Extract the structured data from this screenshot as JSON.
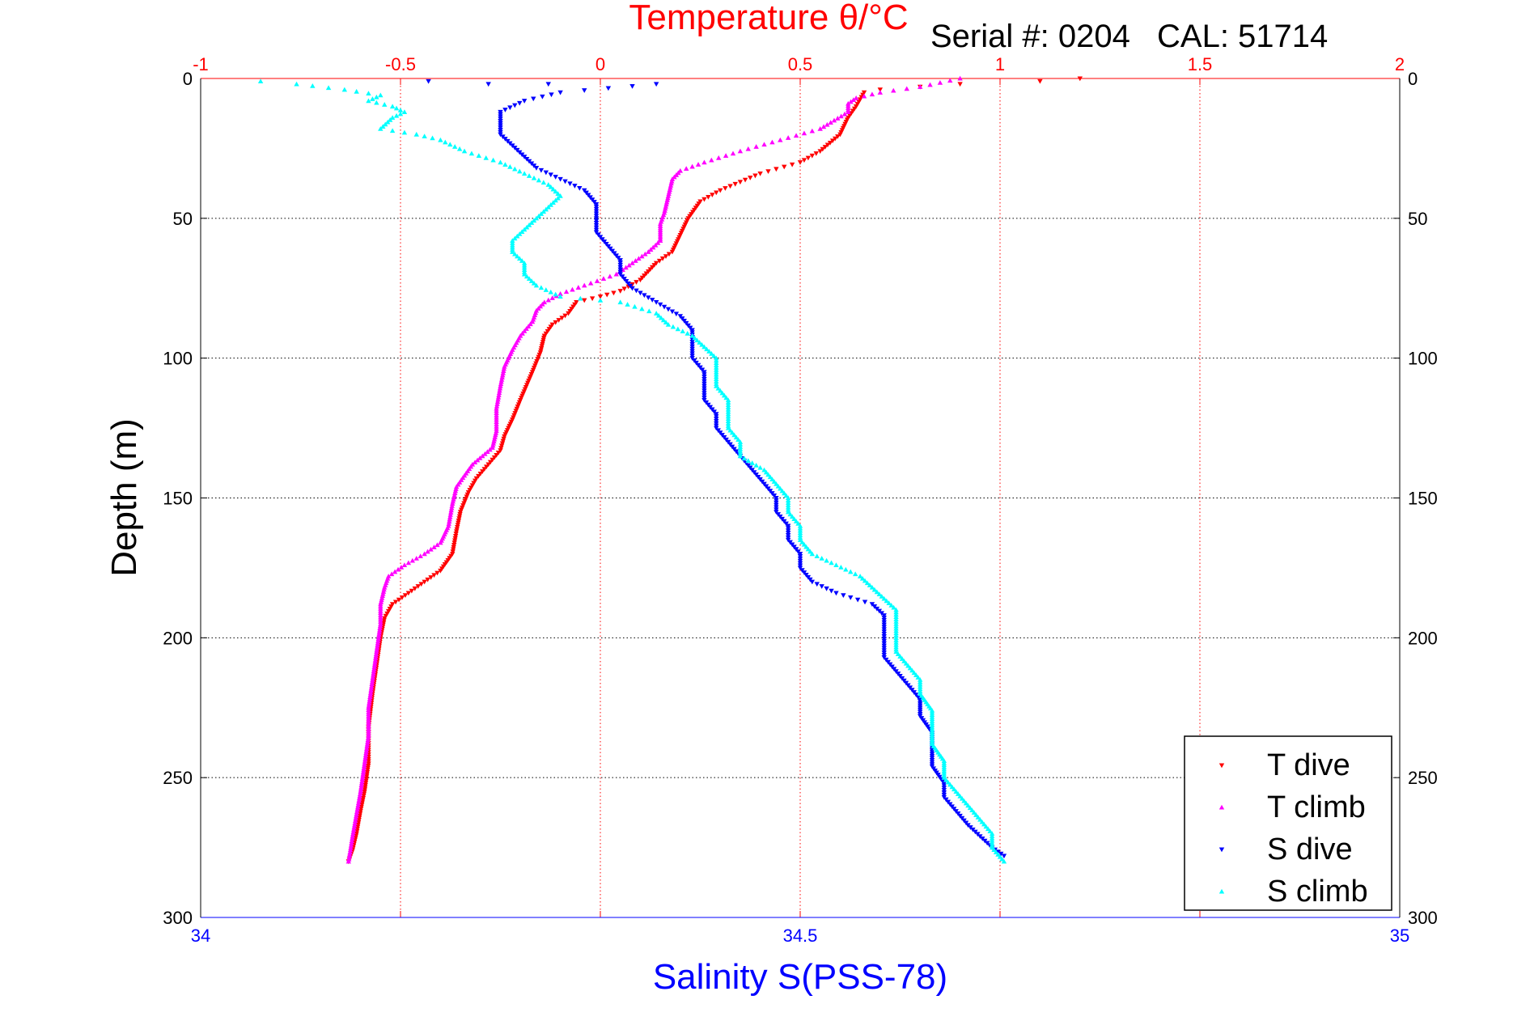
{
  "chart_data": {
    "type": "scatter",
    "header": {
      "serial_label": "Serial #: 0204",
      "cal_label": "CAL: 51714"
    },
    "temperature_axis": {
      "label": "Temperature θ/°C",
      "range": [
        -1,
        2
      ],
      "ticks": [
        "-1",
        "-0.5",
        "0",
        "0.5",
        "1",
        "1.5",
        "2"
      ],
      "color": "#ff0000"
    },
    "salinity_axis": {
      "label": "Salinity S(PSS-78)",
      "range": [
        34,
        35
      ],
      "ticks": [
        "34",
        "34.5",
        "35"
      ],
      "color": "#0000ff"
    },
    "depth_axis": {
      "label": "Depth (m)",
      "range": [
        0,
        300
      ],
      "ticks": [
        "0",
        "50",
        "100",
        "150",
        "200",
        "250",
        "300"
      ],
      "reversed": true
    },
    "grid": true,
    "legend_position": "bottom-right",
    "series": [
      {
        "name": "T dive",
        "axis": "temperature",
        "color": "#ff0000",
        "marker": "triangle-down",
        "points": [
          [
            1.2,
            0
          ],
          [
            1.1,
            1
          ],
          [
            0.9,
            2
          ],
          [
            0.8,
            3
          ],
          [
            0.7,
            4
          ],
          [
            0.66,
            5
          ],
          [
            0.64,
            10
          ],
          [
            0.62,
            14
          ],
          [
            0.6,
            20
          ],
          [
            0.55,
            26
          ],
          [
            0.5,
            30
          ],
          [
            0.4,
            34
          ],
          [
            0.3,
            40
          ],
          [
            0.25,
            44
          ],
          [
            0.22,
            50
          ],
          [
            0.2,
            56
          ],
          [
            0.18,
            62
          ],
          [
            0.14,
            66
          ],
          [
            0.1,
            72
          ],
          [
            0.05,
            76
          ],
          [
            0.0,
            78
          ],
          [
            -0.06,
            80
          ],
          [
            -0.08,
            84
          ],
          [
            -0.12,
            88
          ],
          [
            -0.14,
            92
          ],
          [
            -0.15,
            98
          ],
          [
            -0.17,
            105
          ],
          [
            -0.2,
            115
          ],
          [
            -0.22,
            122
          ],
          [
            -0.24,
            128
          ],
          [
            -0.25,
            133
          ],
          [
            -0.28,
            138
          ],
          [
            -0.31,
            143
          ],
          [
            -0.33,
            148
          ],
          [
            -0.35,
            155
          ],
          [
            -0.36,
            162
          ],
          [
            -0.37,
            170
          ],
          [
            -0.4,
            176
          ],
          [
            -0.44,
            180
          ],
          [
            -0.48,
            184
          ],
          [
            -0.52,
            188
          ],
          [
            -0.54,
            193
          ],
          [
            -0.55,
            200
          ],
          [
            -0.56,
            210
          ],
          [
            -0.57,
            220
          ],
          [
            -0.58,
            232
          ],
          [
            -0.58,
            245
          ],
          [
            -0.59,
            255
          ],
          [
            -0.6,
            262
          ],
          [
            -0.61,
            270
          ],
          [
            -0.62,
            276
          ],
          [
            -0.63,
            280
          ]
        ]
      },
      {
        "name": "T climb",
        "axis": "temperature",
        "color": "#ff00ff",
        "marker": "triangle-up",
        "points": [
          [
            0.9,
            0
          ],
          [
            0.8,
            3
          ],
          [
            0.7,
            5
          ],
          [
            0.64,
            7
          ],
          [
            0.62,
            9
          ],
          [
            0.62,
            12
          ],
          [
            0.55,
            18
          ],
          [
            0.45,
            22
          ],
          [
            0.35,
            26
          ],
          [
            0.26,
            30
          ],
          [
            0.2,
            33
          ],
          [
            0.18,
            36
          ],
          [
            0.17,
            42
          ],
          [
            0.16,
            48
          ],
          [
            0.15,
            52
          ],
          [
            0.15,
            58
          ],
          [
            0.12,
            62
          ],
          [
            0.08,
            66
          ],
          [
            0.04,
            70
          ],
          [
            -0.04,
            74
          ],
          [
            -0.1,
            77
          ],
          [
            -0.14,
            80
          ],
          [
            -0.16,
            83
          ],
          [
            -0.17,
            87
          ],
          [
            -0.2,
            92
          ],
          [
            -0.22,
            97
          ],
          [
            -0.24,
            103
          ],
          [
            -0.25,
            110
          ],
          [
            -0.26,
            118
          ],
          [
            -0.26,
            126
          ],
          [
            -0.27,
            132
          ],
          [
            -0.32,
            138
          ],
          [
            -0.34,
            142
          ],
          [
            -0.36,
            146
          ],
          [
            -0.37,
            152
          ],
          [
            -0.38,
            160
          ],
          [
            -0.4,
            166
          ],
          [
            -0.44,
            170
          ],
          [
            -0.49,
            174
          ],
          [
            -0.53,
            178
          ],
          [
            -0.54,
            182
          ],
          [
            -0.55,
            188
          ],
          [
            -0.55,
            195
          ],
          [
            -0.56,
            205
          ],
          [
            -0.57,
            215
          ],
          [
            -0.58,
            225
          ],
          [
            -0.58,
            235
          ],
          [
            -0.59,
            245
          ],
          [
            -0.6,
            255
          ],
          [
            -0.61,
            263
          ],
          [
            -0.62,
            271
          ],
          [
            -0.63,
            280
          ]
        ]
      },
      {
        "name": "S dive",
        "axis": "salinity",
        "color": "#0000ff",
        "marker": "triangle-down",
        "points": [
          [
            34.19,
            1
          ],
          [
            34.24,
            2
          ],
          [
            34.29,
            2
          ],
          [
            34.38,
            2
          ],
          [
            34.3,
            5
          ],
          [
            34.27,
            8
          ],
          [
            34.25,
            12
          ],
          [
            34.25,
            16
          ],
          [
            34.25,
            20
          ],
          [
            34.26,
            24
          ],
          [
            34.27,
            28
          ],
          [
            34.28,
            32
          ],
          [
            34.3,
            36
          ],
          [
            34.32,
            40
          ],
          [
            34.33,
            45
          ],
          [
            34.33,
            50
          ],
          [
            34.33,
            55
          ],
          [
            34.34,
            60
          ],
          [
            34.35,
            65
          ],
          [
            34.35,
            70
          ],
          [
            34.36,
            75
          ],
          [
            34.38,
            80
          ],
          [
            34.4,
            85
          ],
          [
            34.41,
            90
          ],
          [
            34.41,
            95
          ],
          [
            34.41,
            100
          ],
          [
            34.42,
            105
          ],
          [
            34.42,
            110
          ],
          [
            34.42,
            115
          ],
          [
            34.43,
            120
          ],
          [
            34.43,
            125
          ],
          [
            34.44,
            130
          ],
          [
            34.45,
            135
          ],
          [
            34.46,
            140
          ],
          [
            34.47,
            145
          ],
          [
            34.48,
            150
          ],
          [
            34.48,
            155
          ],
          [
            34.49,
            160
          ],
          [
            34.49,
            165
          ],
          [
            34.5,
            170
          ],
          [
            34.5,
            175
          ],
          [
            34.51,
            180
          ],
          [
            34.53,
            184
          ],
          [
            34.56,
            188
          ],
          [
            34.57,
            192
          ],
          [
            34.57,
            197
          ],
          [
            34.57,
            202
          ],
          [
            34.57,
            207
          ],
          [
            34.58,
            212
          ],
          [
            34.59,
            217
          ],
          [
            34.6,
            222
          ],
          [
            34.6,
            228
          ],
          [
            34.61,
            234
          ],
          [
            34.61,
            240
          ],
          [
            34.61,
            246
          ],
          [
            34.62,
            252
          ],
          [
            34.62,
            257
          ],
          [
            34.63,
            262
          ],
          [
            34.64,
            267
          ],
          [
            34.65,
            271
          ],
          [
            34.66,
            275
          ],
          [
            34.67,
            278
          ]
        ]
      },
      {
        "name": "S climb",
        "axis": "salinity",
        "color": "#00ffff",
        "marker": "triangle-up",
        "points": [
          [
            34.05,
            1
          ],
          [
            34.08,
            2
          ],
          [
            34.12,
            4
          ],
          [
            34.15,
            6
          ],
          [
            34.14,
            8
          ],
          [
            34.16,
            10
          ],
          [
            34.17,
            12
          ],
          [
            34.16,
            14
          ],
          [
            34.15,
            18
          ],
          [
            34.18,
            20
          ],
          [
            34.2,
            22
          ],
          [
            34.22,
            26
          ],
          [
            34.25,
            30
          ],
          [
            34.27,
            34
          ],
          [
            34.29,
            38
          ],
          [
            34.3,
            42
          ],
          [
            34.29,
            46
          ],
          [
            34.28,
            50
          ],
          [
            34.27,
            54
          ],
          [
            34.26,
            58
          ],
          [
            34.26,
            62
          ],
          [
            34.27,
            66
          ],
          [
            34.27,
            70
          ],
          [
            34.28,
            74
          ],
          [
            34.3,
            78
          ],
          [
            34.35,
            80
          ],
          [
            34.38,
            84
          ],
          [
            34.39,
            88
          ],
          [
            34.41,
            92
          ],
          [
            34.42,
            96
          ],
          [
            34.43,
            100
          ],
          [
            34.43,
            105
          ],
          [
            34.43,
            110
          ],
          [
            34.44,
            115
          ],
          [
            34.44,
            120
          ],
          [
            34.44,
            125
          ],
          [
            34.45,
            130
          ],
          [
            34.45,
            135
          ],
          [
            34.47,
            140
          ],
          [
            34.48,
            145
          ],
          [
            34.49,
            150
          ],
          [
            34.49,
            155
          ],
          [
            34.5,
            160
          ],
          [
            34.5,
            165
          ],
          [
            34.51,
            170
          ],
          [
            34.53,
            174
          ],
          [
            34.55,
            178
          ],
          [
            34.56,
            182
          ],
          [
            34.57,
            186
          ],
          [
            34.58,
            190
          ],
          [
            34.58,
            195
          ],
          [
            34.58,
            200
          ],
          [
            34.58,
            205
          ],
          [
            34.59,
            210
          ],
          [
            34.6,
            215
          ],
          [
            34.6,
            220
          ],
          [
            34.61,
            226
          ],
          [
            34.61,
            232
          ],
          [
            34.61,
            238
          ],
          [
            34.62,
            244
          ],
          [
            34.62,
            250
          ],
          [
            34.63,
            255
          ],
          [
            34.64,
            260
          ],
          [
            34.65,
            265
          ],
          [
            34.66,
            270
          ],
          [
            34.66,
            275
          ],
          [
            34.67,
            280
          ]
        ]
      }
    ]
  }
}
